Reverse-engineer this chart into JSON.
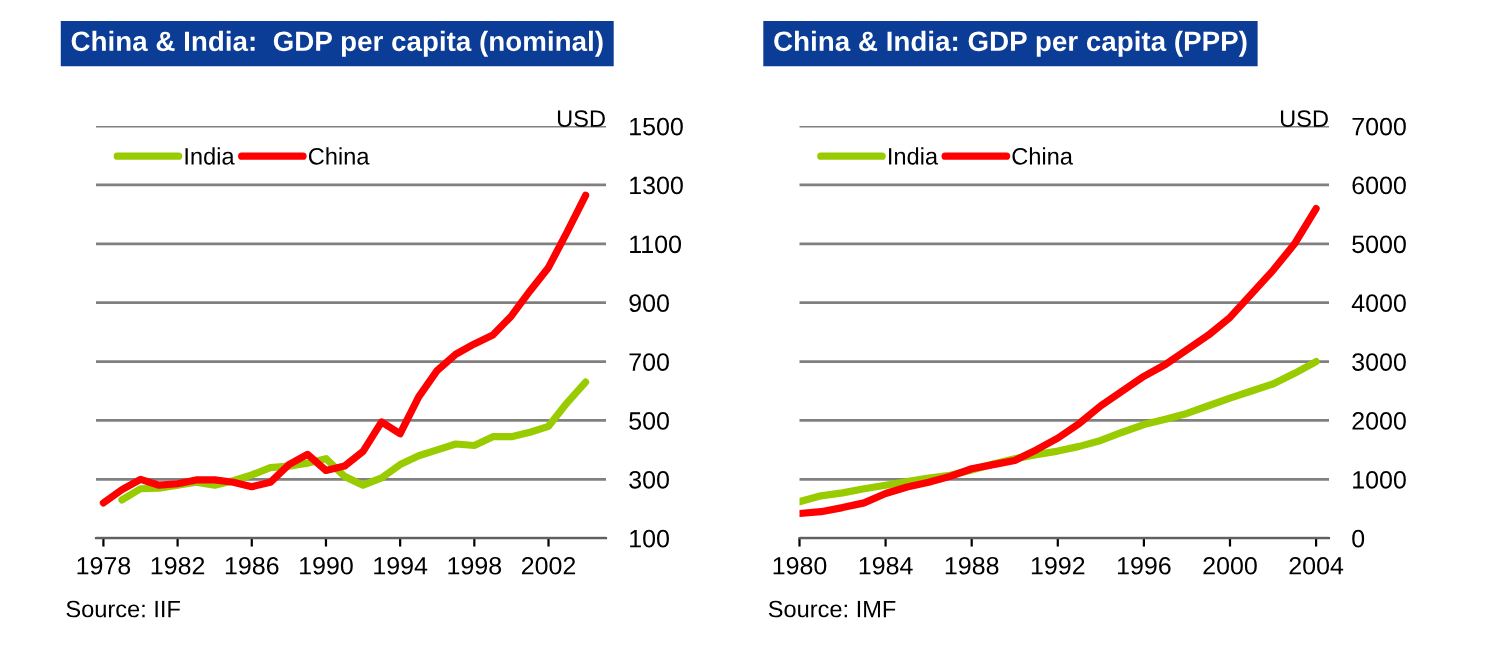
{
  "chart_data": [
    {
      "type": "line",
      "title": "China & India:  GDP per capita (nominal)",
      "ylabel": "USD",
      "x": [
        1978,
        1979,
        1980,
        1981,
        1982,
        1983,
        1984,
        1985,
        1986,
        1987,
        1988,
        1989,
        1990,
        1991,
        1992,
        1993,
        1994,
        1995,
        1996,
        1997,
        1998,
        1999,
        2000,
        2001,
        2002,
        2003,
        2004
      ],
      "series": [
        {
          "name": "India",
          "color": "#99cc00",
          "values": [
            null,
            230,
            268,
            270,
            280,
            290,
            280,
            295,
            315,
            340,
            345,
            355,
            370,
            310,
            280,
            305,
            350,
            380,
            400,
            420,
            415,
            445,
            445,
            460,
            480,
            560,
            630
          ]
        },
        {
          "name": "China",
          "color": "#ff0000",
          "values": [
            220,
            265,
            300,
            280,
            285,
            298,
            298,
            290,
            275,
            290,
            350,
            385,
            330,
            345,
            395,
            495,
            455,
            580,
            670,
            725,
            760,
            790,
            855,
            940,
            1020,
            1140,
            1265
          ]
        }
      ],
      "xlim": [
        1977.6,
        2005.1
      ],
      "xticks": [
        1978,
        1982,
        1986,
        1990,
        1994,
        1998,
        2002
      ],
      "ylim": [
        100,
        1500
      ],
      "yticks": [
        100,
        300,
        500,
        700,
        900,
        1100,
        1300,
        1500
      ],
      "grid": "y",
      "legend": "top left",
      "line_style": "solid",
      "annotations": [
        "Source: IIF"
      ]
    },
    {
      "type": "line",
      "title": "China & India: GDP per capita (PPP)",
      "ylabel": "USD",
      "x": [
        1980,
        1981,
        1982,
        1983,
        1984,
        1985,
        1986,
        1987,
        1988,
        1989,
        1990,
        1991,
        1992,
        1993,
        1994,
        1995,
        1996,
        1997,
        1998,
        1999,
        2000,
        2001,
        2002,
        2003,
        2004
      ],
      "series": [
        {
          "name": "India",
          "color": "#99cc00",
          "values": [
            620,
            720,
            770,
            840,
            900,
            960,
            1020,
            1070,
            1160,
            1260,
            1350,
            1420,
            1480,
            1560,
            1660,
            1800,
            1930,
            2020,
            2120,
            2250,
            2380,
            2500,
            2620,
            2800,
            3000
          ]
        },
        {
          "name": "China",
          "color": "#ff0000",
          "values": [
            420,
            450,
            520,
            600,
            760,
            870,
            950,
            1050,
            1180,
            1250,
            1320,
            1500,
            1700,
            1950,
            2250,
            2500,
            2750,
            2950,
            3200,
            3450,
            3750,
            4150,
            4550,
            5000,
            5600
          ]
        }
      ],
      "xlim": [
        1980,
        2004.6
      ],
      "xticks": [
        1980,
        1984,
        1988,
        1992,
        1996,
        2000,
        2004
      ],
      "ylim": [
        0,
        7000
      ],
      "yticks": [
        0,
        1000,
        2000,
        3000,
        4000,
        5000,
        6000,
        7000
      ],
      "grid": "y",
      "legend": "top left",
      "line_style": "solid",
      "annotations": [
        "Source: IMF"
      ]
    }
  ]
}
